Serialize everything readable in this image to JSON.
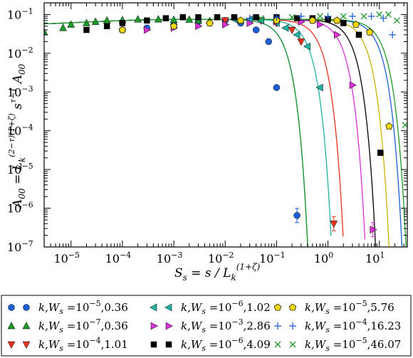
{
  "chart_data": {
    "type": "scatter",
    "title": "",
    "xlabel_parts": {
      "main": "S",
      "sub": "s",
      "mid": " = s / L",
      "sub2": "k",
      "sup": "(1+ζ)"
    },
    "ylabel_parts": {
      "main": "A",
      "sub": "00",
      "mid": " = L",
      "sub2": "k",
      "sup": "(2−τ)(1+ζ)",
      "mid2": " s",
      "sup2": "τ−1",
      "tail": " A",
      "sub3": "00"
    },
    "xscale": "log",
    "yscale": "log",
    "xlim": [
      3e-06,
      35
    ],
    "ylim": [
      1e-07,
      0.2
    ],
    "x_ticks": [
      {
        "b": "10",
        "e": "-5"
      },
      {
        "b": "10",
        "e": "-4"
      },
      {
        "b": "10",
        "e": "-3"
      },
      {
        "b": "10",
        "e": "-2"
      },
      {
        "b": "10",
        "e": "-1"
      },
      {
        "b": "10",
        "e": "0"
      },
      {
        "b": "10",
        "e": "1"
      }
    ],
    "y_ticks": [
      {
        "b": "10",
        "e": "-7"
      },
      {
        "b": "10",
        "e": "-6"
      },
      {
        "b": "10",
        "e": "-5"
      },
      {
        "b": "10",
        "e": "-4"
      },
      {
        "b": "10",
        "e": "-3"
      },
      {
        "b": "10",
        "e": "-2"
      },
      {
        "b": "10",
        "e": "-1"
      }
    ],
    "legend_position": "bottom",
    "series": [
      {
        "name": "k,W_s =10^-5,0.36",
        "legend": {
          "prefix": "k,W",
          "sub": "s",
          "mid": " =10",
          "exp": "−5",
          "tail": ",0.36"
        },
        "marker": "circle",
        "color": "#1f5fd6",
        "line_color": "#1f5fd6",
        "x": [
          0.0001,
          0.0003,
          0.001,
          0.003,
          0.01,
          0.02,
          0.04,
          0.07,
          0.1,
          0.25
        ],
        "y": [
          0.04,
          0.045,
          0.055,
          0.065,
          0.07,
          0.06,
          0.04,
          0.02,
          0.0013,
          6.5e-07
        ],
        "fit_xc": 0.11
      },
      {
        "name": "k,W_s =10^-7,0.36",
        "legend": {
          "prefix": "k,W",
          "sub": "s",
          "mid": " =10",
          "exp": "−7",
          "tail": ",0.36"
        },
        "marker": "triangle-up",
        "color": "#1e9a2b",
        "line_color": "#1e9a2b",
        "x": [
          3e-06,
          7e-06,
          1e-05,
          2e-05,
          3e-05,
          5e-05,
          0.0001,
          0.0002,
          0.0005,
          0.001,
          0.002,
          0.003,
          0.005
        ],
        "y": [
          0.035,
          0.045,
          0.055,
          0.06,
          0.065,
          0.07,
          0.072,
          0.075,
          0.075,
          0.073,
          0.074,
          0.07,
          0.068
        ],
        "fit_xc": 0.11
      },
      {
        "name": "k,W_s =10^-4,1.01",
        "legend": {
          "prefix": "k,W",
          "sub": "s",
          "mid": " =10",
          "exp": "−4",
          "tail": ",1.01"
        },
        "marker": "triangle-down",
        "color": "#e8321e",
        "line_color": "#e8321e",
        "x": [
          0.01,
          0.05,
          0.1,
          0.2,
          0.3,
          1.3
        ],
        "y": [
          0.07,
          0.07,
          0.06,
          0.04,
          0.02,
          4e-07
        ],
        "fit_xc": 0.55
      },
      {
        "name": "k,W_s =10^-6,1.02",
        "legend": {
          "prefix": "k,W",
          "sub": "s",
          "mid": " =10",
          "exp": "−6",
          "tail": ",1.02"
        },
        "marker": "triangle-left",
        "color": "#20b2a0",
        "line_color": "#20b2a0",
        "x": [
          0.015,
          0.03,
          0.05,
          0.1,
          0.15,
          0.25,
          0.4,
          0.7
        ],
        "y": [
          0.075,
          0.075,
          0.07,
          0.06,
          0.045,
          0.03,
          0.015,
          0.0013
        ],
        "fit_xc": 0.32
      },
      {
        "name": "k,W_s =10^-3,2.86",
        "legend": {
          "prefix": "k,W",
          "sub": "s",
          "mid": " =10",
          "exp": "−3",
          "tail": ",2.86"
        },
        "marker": "triangle-right",
        "color": "#d633d6",
        "line_color": "#d633d6",
        "x": [
          0.0003,
          0.001,
          0.003,
          0.01,
          0.03,
          0.1,
          0.3,
          0.7,
          1.5,
          3.0,
          7.5
        ],
        "y": [
          0.04,
          0.045,
          0.05,
          0.055,
          0.06,
          0.065,
          0.065,
          0.055,
          0.03,
          0.0015,
          2.8e-07
        ],
        "fit_xc": 1.45
      },
      {
        "name": "k,W_s =10^-6,4.09",
        "legend": {
          "prefix": "k,W",
          "sub": "s",
          "mid": " =10",
          "exp": "−6",
          "tail": ",4.09"
        },
        "marker": "square",
        "color": "#000000",
        "line_color": "#000000",
        "x": [
          2e-05,
          5e-05,
          0.0001,
          0.0003,
          0.0007,
          0.0015,
          0.003,
          0.007,
          0.015,
          0.04,
          0.1,
          0.25,
          0.5,
          1.0,
          2.0,
          4.0,
          10.5
        ],
        "y": [
          0.04,
          0.05,
          0.06,
          0.07,
          0.08,
          0.085,
          0.085,
          0.085,
          0.085,
          0.085,
          0.085,
          0.08,
          0.08,
          0.075,
          0.06,
          0.03,
          2.7e-05
        ],
        "fit_xc": 2.3
      },
      {
        "name": "k,W_s =10^-5,5.76",
        "legend": {
          "prefix": "k,W",
          "sub": "s",
          "mid": " =10",
          "exp": "−5",
          "tail": ",5.76"
        },
        "marker": "pentagon",
        "color": "#f2d700",
        "line_color": "#c9b400",
        "x": [
          0.0001,
          0.001,
          0.005,
          0.02,
          0.1,
          0.5,
          1.5,
          3.5,
          6.5,
          15.5
        ],
        "y": [
          0.04,
          0.05,
          0.06,
          0.07,
          0.07,
          0.07,
          0.07,
          0.055,
          0.035,
          0.00013
        ],
        "fit_xc": 4.2
      },
      {
        "name": "k,W_s =10^-4,16.23",
        "legend": {
          "prefix": "k,W",
          "sub": "s",
          "mid": " =10",
          "exp": "−4",
          "tail": ",16.23"
        },
        "marker": "plus",
        "color": "#1f5fd6",
        "line_color": "#1f5fd6",
        "x": [
          0.03,
          0.1,
          0.3,
          1.0,
          3.0,
          7.0,
          12.0,
          18.0
        ],
        "y": [
          0.08,
          0.085,
          0.09,
          0.09,
          0.09,
          0.09,
          0.08,
          0.03
        ],
        "fit_xc": 7.5
      },
      {
        "name": "k,W_s =10^-5,46.07",
        "legend": {
          "prefix": "k,W",
          "sub": "s",
          "mid": " =10",
          "exp": "−5",
          "tail": ",46.07"
        },
        "marker": "cross",
        "color": "#1e9a2b",
        "line_color": "#1e9a2b",
        "x": [
          0.05,
          0.2,
          0.7,
          2.0,
          5.0,
          10.0,
          15.0,
          22.0,
          32.0
        ],
        "y": [
          0.08,
          0.085,
          0.09,
          0.09,
          0.09,
          0.1,
          0.1,
          0.07,
          0.00014
        ],
        "fit_xc": 9.0
      }
    ]
  }
}
